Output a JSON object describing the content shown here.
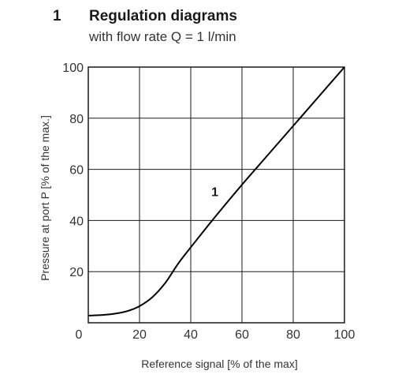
{
  "header": {
    "section_number": "1",
    "title": "Regulation diagrams",
    "subtitle": "with flow rate Q = 1 l/min"
  },
  "chart_data": {
    "type": "line",
    "title": "Regulation diagrams",
    "subtitle": "with flow rate Q = 1 l/min",
    "xlabel": "Reference signal  [% of the max]",
    "ylabel": "Pressure at port P [% of the max.]",
    "xlim": [
      0,
      100
    ],
    "ylim": [
      0,
      100
    ],
    "x_ticks": [
      "0",
      "20",
      "40",
      "60",
      "80",
      "100"
    ],
    "y_ticks": [
      "20",
      "40",
      "60",
      "80",
      "100"
    ],
    "grid": true,
    "series": [
      {
        "name": "1",
        "x": [
          0,
          5,
          10,
          15,
          20,
          25,
          30,
          35,
          40,
          50,
          60,
          70,
          80,
          90,
          100
        ],
        "y": [
          2.8,
          3.0,
          3.5,
          4.5,
          6.5,
          10,
          15.5,
          23,
          29.5,
          42,
          54,
          65.5,
          77,
          88.5,
          100
        ]
      }
    ],
    "annotations": [
      {
        "text": "1",
        "x": 52,
        "y": 47
      }
    ]
  }
}
